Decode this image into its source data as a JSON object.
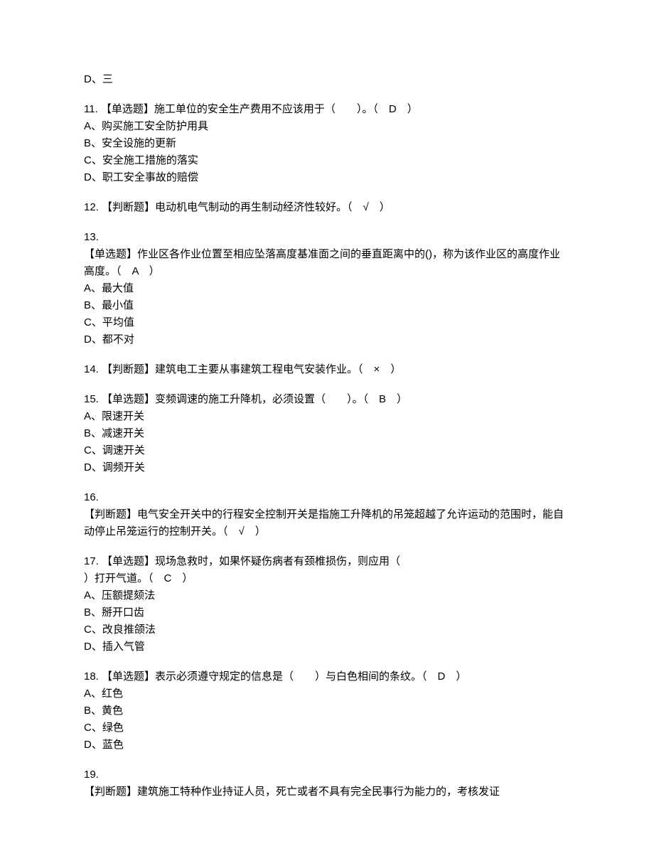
{
  "d_opt": "D、三",
  "q11": {
    "stem": "11. 【单选题】施工单位的安全生产费用不应该用于（　　）。（　D　）",
    "a": "A、购买施工安全防护用具",
    "b": "B、安全设施的更新",
    "c": "C、安全施工措施的落实",
    "d": "D、职工安全事故的赔偿"
  },
  "q12": {
    "stem": "12. 【判断题】电动机电气制动的再生制动经济性较好。（　√　）"
  },
  "q13": {
    "num": "13.",
    "stem": "【单选题】作业区各作业位置至相应坠落高度基准面之间的垂直距离中的()，称为该作业区的高度作业高度。（　A　）",
    "a": "A、最大值",
    "b": "B、最小值",
    "c": "C、平均值",
    "d": "D、都不对"
  },
  "q14": {
    "stem": "14. 【判断题】建筑电工主要从事建筑工程电气安装作业。（　×　）"
  },
  "q15": {
    "stem": "15. 【单选题】变频调速的施工升降机，必须设置（　　）。（　B　）",
    "a": "A、限速开关",
    "b": "B、减速开关",
    "c": "C、调速开关",
    "d": "D、调频开关"
  },
  "q16": {
    "num": "16.",
    "stem": "【判断题】电气安全开关中的行程安全控制开关是指施工升降机的吊笼超越了允许运动的范围时，能自动停止吊笼运行的控制开关。（　√　）"
  },
  "q17": {
    "stem1": "17. 【单选题】现场急救时，如果怀疑伤病者有颈椎损伤，则应用（",
    "stem2": "）打开气道。（　C　）",
    "a": "A、压额提颏法",
    "b": "B、掰开口齿",
    "c": "C、改良推颌法",
    "d": "D、插入气管"
  },
  "q18": {
    "stem": "18. 【单选题】表示必须遵守规定的信息是（　　）与白色相间的条纹。（　D　）",
    "a": "A、红色",
    "b": "B、黄色",
    "c": "C、绿色",
    "d": "D、蓝色"
  },
  "q19": {
    "num": "19.",
    "stem": "【判断题】建筑施工特种作业持证人员，死亡或者不具有完全民事行为能力的，考核发证"
  }
}
